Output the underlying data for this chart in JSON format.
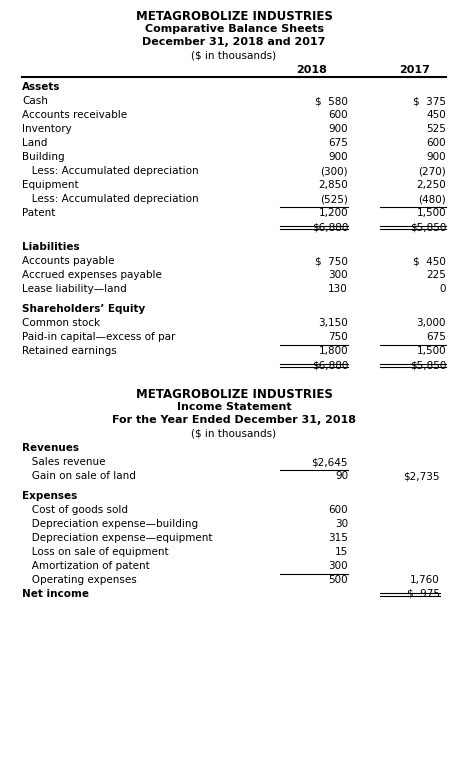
{
  "bs_title1": "METAGROBOLIZE INDUSTRIES",
  "bs_title2": "Comparative Balance Sheets",
  "bs_title3": "December 31, 2018 and 2017",
  "bs_title4": "($ in thousands)",
  "col2018": "2018",
  "col2017": "2017",
  "is_title1": "METAGROBOLIZE INDUSTRIES",
  "is_title2": "Income Statement",
  "is_title3": "For the Year Ended December 31, 2018",
  "is_title4": "($ in thousands)",
  "balance_sheet_rows": [
    {
      "label": "Assets",
      "v2018": "",
      "v2017": "",
      "style": "bold"
    },
    {
      "label": "Cash",
      "v2018": "$  580",
      "v2017": "$  375",
      "style": "normal"
    },
    {
      "label": "Accounts receivable",
      "v2018": "600",
      "v2017": "450",
      "style": "normal"
    },
    {
      "label": "Inventory",
      "v2018": "900",
      "v2017": "525",
      "style": "normal"
    },
    {
      "label": "Land",
      "v2018": "675",
      "v2017": "600",
      "style": "normal"
    },
    {
      "label": "Building",
      "v2018": "900",
      "v2017": "900",
      "style": "normal"
    },
    {
      "label": "   Less: Accumulated depreciation",
      "v2018": "(300)",
      "v2017": "(270)",
      "style": "normal"
    },
    {
      "label": "Equipment",
      "v2018": "2,850",
      "v2017": "2,250",
      "style": "normal"
    },
    {
      "label": "   Less: Accumulated depreciation",
      "v2018": "(525)",
      "v2017": "(480)",
      "style": "normal"
    },
    {
      "label": "Patent",
      "v2018": "1,200",
      "v2017": "1,500",
      "style": "normal",
      "underline": true
    },
    {
      "label": "",
      "v2018": "$6,880",
      "v2017": "$5,850",
      "style": "normal",
      "double_underline": true
    },
    {
      "label": "",
      "v2018": "",
      "v2017": "",
      "style": "normal",
      "spacer": true
    },
    {
      "label": "Liabilities",
      "v2018": "",
      "v2017": "",
      "style": "bold"
    },
    {
      "label": "Accounts payable",
      "v2018": "$  750",
      "v2017": "$  450",
      "style": "normal"
    },
    {
      "label": "Accrued expenses payable",
      "v2018": "300",
      "v2017": "225",
      "style": "normal"
    },
    {
      "label": "Lease liability—land",
      "v2018": "130",
      "v2017": "0",
      "style": "normal"
    },
    {
      "label": "",
      "v2018": "",
      "v2017": "",
      "style": "normal",
      "spacer": true
    },
    {
      "label": "Shareholders’ Equity",
      "v2018": "",
      "v2017": "",
      "style": "bold"
    },
    {
      "label": "Common stock",
      "v2018": "3,150",
      "v2017": "3,000",
      "style": "normal"
    },
    {
      "label": "Paid-in capital—excess of par",
      "v2018": "750",
      "v2017": "675",
      "style": "normal"
    },
    {
      "label": "Retained earnings",
      "v2018": "1,800",
      "v2017": "1,500",
      "style": "normal",
      "underline": true
    },
    {
      "label": "",
      "v2018": "$6,880",
      "v2017": "$5,850",
      "style": "normal",
      "double_underline": true
    }
  ],
  "income_stmt_rows": [
    {
      "label": "Revenues",
      "v1": "",
      "v2": "",
      "style": "bold"
    },
    {
      "label": "   Sales revenue",
      "v1": "$2,645",
      "v2": "",
      "style": "normal"
    },
    {
      "label": "   Gain on sale of land",
      "v1": "90",
      "v2": "$2,735",
      "style": "normal",
      "underline_v1": true
    },
    {
      "label": "",
      "v1": "",
      "v2": "",
      "style": "normal",
      "spacer": true
    },
    {
      "label": "Expenses",
      "v1": "",
      "v2": "",
      "style": "bold"
    },
    {
      "label": "   Cost of goods sold",
      "v1": "600",
      "v2": "",
      "style": "normal"
    },
    {
      "label": "   Depreciation expense—building",
      "v1": "30",
      "v2": "",
      "style": "normal"
    },
    {
      "label": "   Depreciation expense—equipment",
      "v1": "315",
      "v2": "",
      "style": "normal"
    },
    {
      "label": "   Loss on sale of equipment",
      "v1": "15",
      "v2": "",
      "style": "normal"
    },
    {
      "label": "   Amortization of patent",
      "v1": "300",
      "v2": "",
      "style": "normal"
    },
    {
      "label": "   Operating expenses",
      "v1": "500",
      "v2": "1,760",
      "style": "normal",
      "underline_v1": true
    },
    {
      "label": "Net income",
      "v1": "",
      "v2": "$  975",
      "style": "bold",
      "double_underline_v2": true
    }
  ]
}
